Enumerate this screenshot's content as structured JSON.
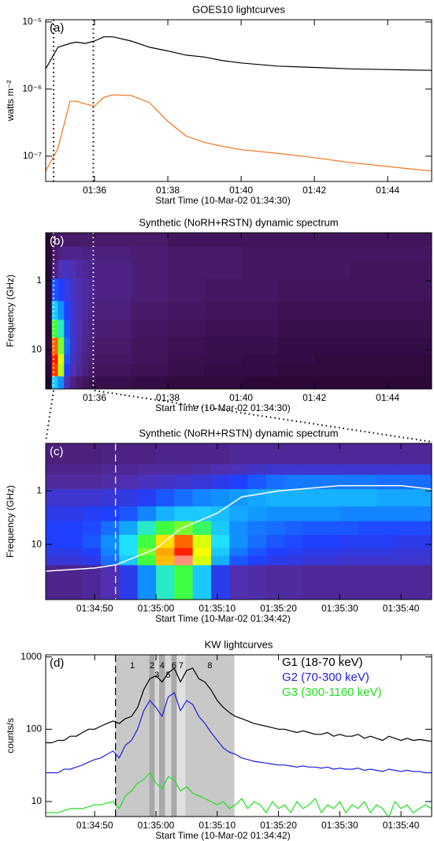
{
  "chart_data": [
    {
      "type": "line",
      "title": "GOES10 lightcurves",
      "annotation": "(a)",
      "annotation_color": "#000000",
      "xlabel": "Start Time (10-Mar-02 01:34:30)",
      "ylabel": "watts m⁻²",
      "xlim": [
        "01:34:40",
        "01:45:12"
      ],
      "xticks": [
        "01:36",
        "01:38",
        "01:40",
        "01:42",
        "01:44"
      ],
      "ylim": [
        4.2e-08,
        1.08e-05
      ],
      "ylog": true,
      "yticks": [
        {
          "value": 1e-05,
          "label": "10⁻⁵"
        },
        {
          "value": 1e-06,
          "label": "10⁻⁶"
        },
        {
          "value": 1e-07,
          "label": "10⁻⁷"
        }
      ],
      "markers": [
        "01:34:53",
        "01:35:58"
      ],
      "marker_color": "#000000",
      "marker_style": "dotted",
      "x": [
        "01:34:40",
        "01:35:00",
        "01:35:20",
        "01:35:30",
        "01:35:45",
        "01:36:00",
        "01:36:15",
        "01:36:30",
        "01:37:00",
        "01:37:30",
        "01:38:00",
        "01:38:30",
        "01:39:00",
        "01:39:30",
        "01:40:00",
        "01:41:00",
        "01:42:00",
        "01:43:00",
        "01:44:00",
        "01:45:12"
      ],
      "series": [
        {
          "color": "#000000",
          "values": [
            2e-06,
            4.2e-06,
            4.8e-06,
            5e-06,
            4.8e-06,
            5.2e-06,
            6e-06,
            6e-06,
            5.2e-06,
            4.2e-06,
            3.7e-06,
            3.2e-06,
            3e-06,
            2.65e-06,
            2.45e-06,
            2.2e-06,
            2.1e-06,
            2e-06,
            1.95e-06,
            1.9e-06
          ]
        },
        {
          "color": "#f4731f",
          "values": [
            6e-08,
            1.3e-07,
            6.6e-07,
            6.6e-07,
            6e-07,
            5.6e-07,
            7.5e-07,
            8.2e-07,
            8e-07,
            6.3e-07,
            3.3e-07,
            2e-07,
            1.6e-07,
            1.4e-07,
            1.25e-07,
            1.1e-07,
            9.5e-08,
            8e-08,
            7e-08,
            6e-08
          ]
        }
      ]
    },
    {
      "type": "heatmap",
      "title": "Synthetic (NoRH+RSTN) dynamic spectrum",
      "annotation": "(b)",
      "annotation_color": "#ffffff",
      "xlabel": "Start Time (10-Mar-02 01:34:30)",
      "ylabel": "Frequency (GHz)",
      "xlim": [
        "01:34:40",
        "01:45:12"
      ],
      "xticks": [
        "01:36",
        "01:38",
        "01:40",
        "01:42",
        "01:44"
      ],
      "ylim": [
        37,
        0.2
      ],
      "ylog": true,
      "yticks": [
        1,
        10
      ],
      "markers": [
        "01:34:53",
        "01:35:58"
      ],
      "marker_color": "#ffffff",
      "marker_style": "dotted",
      "x_edges": [
        "01:34:40",
        "01:34:50",
        "01:35:00",
        "01:35:10",
        "01:35:20",
        "01:35:30",
        "01:35:40",
        "01:35:50",
        "01:36:00",
        "01:37:00",
        "01:38:00",
        "01:39:00",
        "01:40:00",
        "01:41:00",
        "01:42:00",
        "01:43:00",
        "01:44:00",
        "01:45:00",
        "01:45:12"
      ],
      "y": [
        0.245,
        0.41,
        0.61,
        1.415,
        2.695,
        4.995,
        8.8,
        15.4,
        17,
        35
      ],
      "values": [
        [
          0.14,
          0.2,
          0.22,
          0.22,
          0.22,
          0.22,
          0.22,
          0.22,
          0.22,
          0.22,
          0.2,
          0.2,
          0.2,
          0.2,
          0.2,
          0.2,
          0.2,
          0.2
        ],
        [
          0.14,
          0.22,
          0.25,
          0.26,
          0.26,
          0.26,
          0.25,
          0.25,
          0.24,
          0.23,
          0.22,
          0.22,
          0.21,
          0.21,
          0.21,
          0.21,
          0.21,
          0.21
        ],
        [
          0.14,
          0.25,
          0.3,
          0.32,
          0.3,
          0.28,
          0.27,
          0.26,
          0.25,
          0.23,
          0.22,
          0.22,
          0.21,
          0.21,
          0.21,
          0.2,
          0.2,
          0.2
        ],
        [
          0.15,
          0.4,
          0.38,
          0.35,
          0.32,
          0.3,
          0.28,
          0.27,
          0.25,
          0.23,
          0.22,
          0.21,
          0.21,
          0.2,
          0.2,
          0.2,
          0.2,
          0.2
        ],
        [
          0.15,
          0.5,
          0.45,
          0.38,
          0.33,
          0.3,
          0.28,
          0.26,
          0.24,
          0.22,
          0.21,
          0.2,
          0.2,
          0.19,
          0.19,
          0.19,
          0.19,
          0.19
        ],
        [
          0.15,
          0.62,
          0.55,
          0.4,
          0.33,
          0.3,
          0.27,
          0.25,
          0.23,
          0.21,
          0.2,
          0.19,
          0.19,
          0.18,
          0.18,
          0.18,
          0.18,
          0.18
        ],
        [
          0.16,
          0.85,
          0.65,
          0.42,
          0.33,
          0.29,
          0.26,
          0.24,
          0.22,
          0.2,
          0.19,
          0.18,
          0.18,
          0.17,
          0.17,
          0.17,
          0.17,
          0.17
        ],
        [
          0.16,
          0.9,
          0.7,
          0.4,
          0.32,
          0.28,
          0.25,
          0.23,
          0.21,
          0.2,
          0.18,
          0.18,
          0.17,
          0.17,
          0.16,
          0.16,
          0.16,
          0.16
        ],
        [
          0.15,
          0.88,
          0.68,
          0.38,
          0.3,
          0.27,
          0.24,
          0.22,
          0.2,
          0.19,
          0.18,
          0.17,
          0.17,
          0.16,
          0.16,
          0.16,
          0.16,
          0.16
        ],
        [
          0.12,
          0.5,
          0.45,
          0.3,
          0.25,
          0.22,
          0.2,
          0.19,
          0.18,
          0.17,
          0.16,
          0.16,
          0.15,
          0.15,
          0.15,
          0.15,
          0.15,
          0.15
        ]
      ]
    },
    {
      "type": "heatmap",
      "title": "Synthetic (NoRH+RSTN) dynamic spectrum",
      "annotation": "(c)",
      "annotation_color": "#ffffff",
      "xlabel": "Start Time (10-Mar-02 01:34:42)",
      "ylabel": "Frequency (GHz)",
      "xlim": [
        "01:34:42",
        "01:35:45"
      ],
      "xticks": [
        "01:34:50",
        "01:35:00",
        "01:35:10",
        "01:35:20",
        "01:35:30",
        "01:35:40"
      ],
      "ylim": [
        107,
        0.13
      ],
      "ylog": true,
      "yticks": [
        1,
        10
      ],
      "markers": [
        "01:34:53.4"
      ],
      "marker_color": "#ffffff",
      "marker_style": "dashed",
      "x_edges": [
        "01:34:42",
        "01:34:45",
        "01:34:48",
        "01:34:51",
        "01:34:54",
        "01:34:57",
        "01:35:00",
        "01:35:03",
        "01:35:06",
        "01:35:09",
        "01:35:12",
        "01:35:15",
        "01:35:18",
        "01:35:21",
        "01:35:24",
        "01:35:27",
        "01:35:30",
        "01:35:33",
        "01:35:36",
        "01:35:39",
        "01:35:42",
        "01:35:45"
      ],
      "y": [
        0.245,
        0.41,
        0.61,
        1.415,
        2.695,
        4.995,
        8.8,
        15.4,
        17,
        35
      ],
      "values": [
        [
          0.24,
          0.24,
          0.24,
          0.25,
          0.25,
          0.25,
          0.26,
          0.26,
          0.26,
          0.26,
          0.27,
          0.27,
          0.27,
          0.27,
          0.27,
          0.27,
          0.27,
          0.27,
          0.27,
          0.27,
          0.27
        ],
        [
          0.26,
          0.26,
          0.26,
          0.27,
          0.27,
          0.28,
          0.28,
          0.28,
          0.29,
          0.3,
          0.31,
          0.32,
          0.33,
          0.33,
          0.33,
          0.33,
          0.33,
          0.33,
          0.33,
          0.33,
          0.33
        ],
        [
          0.28,
          0.28,
          0.28,
          0.29,
          0.3,
          0.31,
          0.32,
          0.33,
          0.34,
          0.36,
          0.38,
          0.4,
          0.42,
          0.43,
          0.43,
          0.43,
          0.43,
          0.43,
          0.42,
          0.42,
          0.42
        ],
        [
          0.33,
          0.33,
          0.33,
          0.34,
          0.35,
          0.37,
          0.4,
          0.42,
          0.44,
          0.45,
          0.46,
          0.47,
          0.48,
          0.48,
          0.48,
          0.48,
          0.48,
          0.48,
          0.47,
          0.47,
          0.47
        ],
        [
          0.36,
          0.36,
          0.37,
          0.38,
          0.4,
          0.44,
          0.48,
          0.5,
          0.5,
          0.49,
          0.47,
          0.46,
          0.45,
          0.45,
          0.45,
          0.45,
          0.44,
          0.44,
          0.44,
          0.44,
          0.44
        ],
        [
          0.38,
          0.38,
          0.39,
          0.42,
          0.47,
          0.55,
          0.62,
          0.65,
          0.6,
          0.5,
          0.45,
          0.43,
          0.42,
          0.41,
          0.4,
          0.4,
          0.4,
          0.39,
          0.39,
          0.39,
          0.39
        ],
        [
          0.38,
          0.38,
          0.4,
          0.45,
          0.52,
          0.62,
          0.75,
          0.85,
          0.7,
          0.52,
          0.45,
          0.42,
          0.4,
          0.39,
          0.38,
          0.38,
          0.37,
          0.37,
          0.37,
          0.36,
          0.36
        ],
        [
          0.36,
          0.36,
          0.38,
          0.44,
          0.52,
          0.65,
          0.8,
          0.9,
          0.72,
          0.5,
          0.43,
          0.4,
          0.38,
          0.37,
          0.36,
          0.36,
          0.35,
          0.35,
          0.35,
          0.34,
          0.34
        ],
        [
          0.34,
          0.34,
          0.36,
          0.42,
          0.5,
          0.62,
          0.78,
          0.95,
          0.7,
          0.48,
          0.4,
          0.38,
          0.36,
          0.35,
          0.34,
          0.34,
          0.33,
          0.33,
          0.33,
          0.33,
          0.33
        ],
        [
          0.26,
          0.26,
          0.27,
          0.3,
          0.36,
          0.45,
          0.55,
          0.62,
          0.5,
          0.36,
          0.3,
          0.29,
          0.28,
          0.28,
          0.27,
          0.27,
          0.27,
          0.27,
          0.27,
          0.27,
          0.27
        ]
      ],
      "curve": {
        "color": "#ffffff",
        "x": [
          "01:34:42",
          "01:34:50",
          "01:34:53.5",
          "01:35:00",
          "01:35:04",
          "01:35:10",
          "01:35:14",
          "01:35:20",
          "01:35:30",
          "01:35:40",
          "01:35:45"
        ],
        "values": [
          31.6,
          27.6,
          24,
          12,
          5.1,
          2.6,
          1.3,
          1.0,
          0.8,
          0.8,
          0.93
        ]
      }
    },
    {
      "type": "line",
      "title": "KW lightcurves",
      "annotation": "(d)",
      "annotation_color": "#000000",
      "xlabel": "Start Time (10-Mar-02 01:34:42)",
      "ylabel": "counts/s",
      "xlim": [
        "01:34:42",
        "01:35:45"
      ],
      "xticks": [
        "01:34:50",
        "01:35:00",
        "01:35:10",
        "01:35:20",
        "01:35:30",
        "01:35:40"
      ],
      "ylim": [
        6.2,
        1070
      ],
      "ylog": true,
      "yticks": [
        10,
        100,
        1000
      ],
      "markers": [
        "01:34:53.4"
      ],
      "marker_color": "#000000",
      "marker_style": "dashed",
      "legend": "upper right",
      "intervals": [
        {
          "label": "1",
          "start": "01:34:53.4",
          "end": "01:34:58.9",
          "color": "#c8c8c8"
        },
        {
          "label": "2",
          "start": "01:34:58.9",
          "end": "01:34:59.8",
          "color": "#a8a8a8"
        },
        {
          "label": "3",
          "start": "01:34:59.8",
          "end": "01:35:00.5",
          "color": "#d8d8d8"
        },
        {
          "label": "4",
          "start": "01:35:00.5",
          "end": "01:35:01.5",
          "color": "#a8a8a8"
        },
        {
          "label": "5",
          "start": "01:35:01.5",
          "end": "01:35:02.5",
          "color": "#d8d8d8"
        },
        {
          "label": "6",
          "start": "01:35:02.5",
          "end": "01:35:03.4",
          "color": "#a8a8a8"
        },
        {
          "label": "7",
          "start": "01:35:03.4",
          "end": "01:35:04.8",
          "color": "#e0e0e0"
        },
        {
          "label": "8",
          "start": "01:35:04.8",
          "end": "01:35:12.8",
          "color": "#c8c8c8"
        }
      ],
      "x": [
        "01:34:42",
        "01:34:43",
        "01:34:44",
        "01:34:45",
        "01:34:46",
        "01:34:47",
        "01:34:48",
        "01:34:49",
        "01:34:50",
        "01:34:51",
        "01:34:52",
        "01:34:53",
        "01:34:54",
        "01:34:55",
        "01:34:56",
        "01:34:57",
        "01:34:58",
        "01:34:59",
        "01:35:00",
        "01:35:01",
        "01:35:02",
        "01:35:03",
        "01:35:04",
        "01:35:05",
        "01:35:06",
        "01:35:07",
        "01:35:08",
        "01:35:09",
        "01:35:10",
        "01:35:11",
        "01:35:12",
        "01:35:13",
        "01:35:14",
        "01:35:15",
        "01:35:16",
        "01:35:17",
        "01:35:18",
        "01:35:19",
        "01:35:20",
        "01:35:21",
        "01:35:22",
        "01:35:23",
        "01:35:24",
        "01:35:25",
        "01:35:26",
        "01:35:27",
        "01:35:28",
        "01:35:29",
        "01:35:30",
        "01:35:31",
        "01:35:32",
        "01:35:33",
        "01:35:34",
        "01:35:35",
        "01:35:36",
        "01:35:37",
        "01:35:38",
        "01:35:39",
        "01:35:40",
        "01:35:41",
        "01:35:42",
        "01:35:43",
        "01:35:44",
        "01:35:45"
      ],
      "series": [
        {
          "name": "G1 (18-70 keV)",
          "color": "#000000",
          "values": [
            65,
            65,
            70,
            70,
            80,
            80,
            90,
            100,
            100,
            110,
            120,
            130,
            120,
            140,
            150,
            200,
            350,
            500,
            550,
            450,
            600,
            700,
            450,
            650,
            700,
            500,
            450,
            350,
            250,
            200,
            170,
            150,
            140,
            130,
            120,
            115,
            110,
            105,
            100,
            100,
            95,
            90,
            95,
            90,
            85,
            85,
            90,
            80,
            85,
            80,
            80,
            85,
            75,
            80,
            75,
            70,
            80,
            75,
            70,
            75,
            70,
            72,
            70,
            68
          ]
        },
        {
          "name": "G2 (70-300 keV)",
          "color": "#2020e0",
          "values": [
            25,
            25,
            25,
            28,
            28,
            30,
            32,
            35,
            38,
            40,
            45,
            50,
            40,
            60,
            70,
            100,
            180,
            250,
            200,
            150,
            280,
            320,
            180,
            250,
            220,
            150,
            120,
            90,
            70,
            55,
            48,
            45,
            40,
            38,
            36,
            35,
            34,
            33,
            32,
            32,
            31,
            30,
            31,
            30,
            30,
            29,
            30,
            28,
            29,
            28,
            28,
            29,
            27,
            28,
            27,
            26,
            28,
            27,
            26,
            27,
            26,
            26,
            25,
            25
          ]
        },
        {
          "name": "G3 (300-1160 keV)",
          "color": "#20e020",
          "values": [
            7,
            7,
            7,
            7.5,
            8,
            8,
            8,
            8.5,
            9,
            9,
            9.5,
            10,
            8,
            12,
            14,
            18,
            20,
            25,
            18,
            15,
            22,
            20,
            14,
            16,
            13,
            12,
            11,
            10,
            9,
            10,
            8,
            9,
            11,
            8,
            10,
            9,
            7,
            10,
            8,
            9,
            7,
            10,
            8,
            9,
            11,
            7,
            9,
            8,
            10,
            7,
            9,
            8,
            10,
            7,
            9,
            8,
            6,
            10,
            8,
            9,
            7,
            8,
            9,
            8
          ]
        }
      ]
    }
  ]
}
